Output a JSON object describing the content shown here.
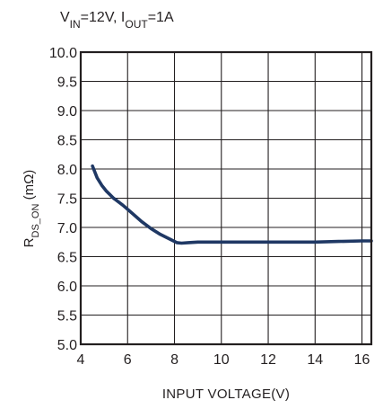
{
  "chart_data": {
    "type": "line",
    "title": {
      "parts": [
        {
          "text": "V",
          "sub": false
        },
        {
          "text": "IN",
          "sub": true
        },
        {
          "text": "=12V, I",
          "sub": false
        },
        {
          "text": "OUT",
          "sub": true
        },
        {
          "text": "=1A",
          "sub": false
        }
      ]
    },
    "xlabel": "INPUT  VOLTAGE(V)",
    "ylabel": {
      "parts": [
        {
          "text": "R",
          "sub": false
        },
        {
          "text": "DS_ON",
          "sub": true
        },
        {
          "text": " (mΩ)",
          "sub": false
        }
      ]
    },
    "xlim": [
      4,
      16.4
    ],
    "ylim": [
      5.0,
      10.0
    ],
    "x_ticks": [
      4,
      6,
      8,
      10,
      12,
      14,
      16
    ],
    "x_tick_labels": [
      "4",
      "6",
      "8",
      "10",
      "12",
      "14",
      "16"
    ],
    "x_grid": [
      4,
      6,
      8,
      10,
      12,
      14,
      16
    ],
    "y_ticks": [
      5.0,
      5.5,
      6.0,
      6.5,
      7.0,
      7.5,
      8.0,
      8.5,
      9.0,
      9.5,
      10.0
    ],
    "y_tick_labels": [
      "5.0",
      "5.5",
      "6.0",
      "6.5",
      "7.0",
      "7.5",
      "8.0",
      "8.5",
      "9.0",
      "9.5",
      "10.0"
    ],
    "grid": true,
    "line_color": "#1f3864",
    "grid_color": "#231f20",
    "series": [
      {
        "x": [
          4.5,
          4.7,
          4.9,
          5.1,
          5.4,
          5.8,
          6.2,
          6.6,
          7.0,
          7.4,
          7.8,
          8.1,
          8.3,
          8.6,
          9.0,
          10.0,
          11.0,
          12.0,
          13.0,
          14.0,
          15.0,
          16.0,
          16.4
        ],
        "y": [
          8.05,
          7.85,
          7.72,
          7.62,
          7.5,
          7.38,
          7.24,
          7.1,
          6.98,
          6.88,
          6.8,
          6.74,
          6.73,
          6.74,
          6.75,
          6.75,
          6.75,
          6.75,
          6.75,
          6.75,
          6.76,
          6.77,
          6.77
        ]
      }
    ]
  }
}
